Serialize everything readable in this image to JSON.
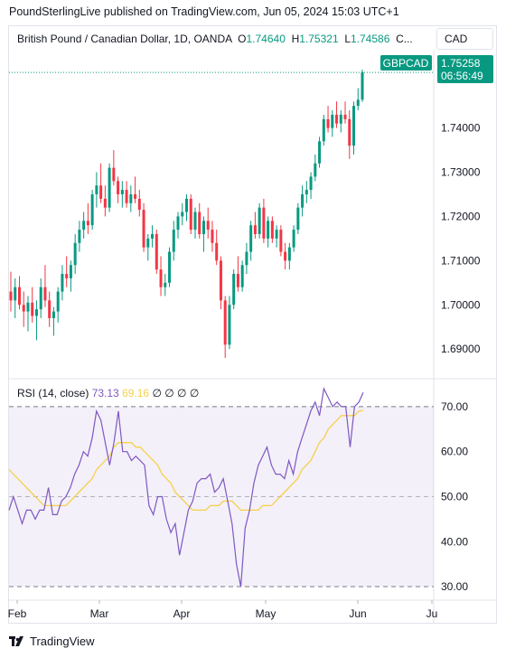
{
  "header": {
    "publisher": "PoundSterlingLive published on TradingView.com, Jun 05, 2024 15:03 UTC+1"
  },
  "legend": {
    "title": "British Pound / Canadian Dollar, 1D, OANDA",
    "open_label": "O",
    "open": "1.74640",
    "high_label": "H",
    "high": "1.75321",
    "low_label": "L",
    "low": "1.74586",
    "more": "C..."
  },
  "currency_button": "CAD",
  "price_tag": {
    "symbol": "GBPCAD",
    "price": "1.75258",
    "countdown": "06:56:49"
  },
  "rsi_legend": {
    "name": "RSI (14, close)",
    "rsi": "73.13",
    "ma": "69.16",
    "extras": "∅ ∅ ∅ ∅"
  },
  "brand": {
    "name": "TradingView",
    "icon": "tradingview-logo-icon"
  },
  "colors": {
    "up": "#089981",
    "down": "#f23645",
    "rsi": "#7e57c2",
    "rsi_ma": "#f7d04a",
    "band": "#7e57c2"
  },
  "chart_data": [
    {
      "type": "candlestick",
      "x_tick_labels": [
        "Feb",
        "Mar",
        "Apr",
        "May",
        "Jun",
        "Ju"
      ],
      "y_tick_labels": [
        "1.74000",
        "1.73000",
        "1.72000",
        "1.71000",
        "1.70000",
        "1.69000"
      ],
      "ylim": [
        1.6835,
        1.7575
      ],
      "grid": false,
      "candles": [
        [
          1.703,
          1.7075,
          1.6985,
          1.701
        ],
        [
          1.701,
          1.706,
          1.697,
          1.704
        ],
        [
          1.704,
          1.7065,
          1.699,
          1.7
        ],
        [
          1.7,
          1.703,
          1.695,
          1.6985
        ],
        [
          1.6985,
          1.702,
          1.694,
          1.7005
        ],
        [
          1.7005,
          1.704,
          1.696,
          1.6975
        ],
        [
          1.6975,
          1.701,
          1.692,
          1.699
        ],
        [
          1.699,
          1.706,
          1.697,
          1.704
        ],
        [
          1.704,
          1.709,
          1.6995,
          1.701
        ],
        [
          1.701,
          1.703,
          1.695,
          1.697
        ],
        [
          1.697,
          1.6995,
          1.693,
          1.6985
        ],
        [
          1.6985,
          1.704,
          1.696,
          1.703
        ],
        [
          1.703,
          1.709,
          1.701,
          1.707
        ],
        [
          1.707,
          1.711,
          1.704,
          1.706
        ],
        [
          1.706,
          1.71,
          1.703,
          1.709
        ],
        [
          1.709,
          1.716,
          1.707,
          1.714
        ],
        [
          1.714,
          1.719,
          1.712,
          1.717
        ],
        [
          1.717,
          1.721,
          1.715,
          1.719
        ],
        [
          1.719,
          1.723,
          1.716,
          1.718
        ],
        [
          1.718,
          1.726,
          1.717,
          1.725
        ],
        [
          1.725,
          1.73,
          1.722,
          1.727
        ],
        [
          1.727,
          1.732,
          1.723,
          1.724
        ],
        [
          1.724,
          1.727,
          1.72,
          1.722
        ],
        [
          1.722,
          1.732,
          1.721,
          1.731
        ],
        [
          1.731,
          1.735,
          1.727,
          1.728
        ],
        [
          1.728,
          1.729,
          1.723,
          1.725
        ],
        [
          1.725,
          1.728,
          1.722,
          1.726
        ],
        [
          1.726,
          1.728,
          1.722,
          1.723
        ],
        [
          1.723,
          1.727,
          1.721,
          1.725
        ],
        [
          1.725,
          1.729,
          1.723,
          1.724
        ],
        [
          1.724,
          1.726,
          1.72,
          1.7215
        ],
        [
          1.7215,
          1.723,
          1.712,
          1.713
        ],
        [
          1.713,
          1.716,
          1.71,
          1.715
        ],
        [
          1.715,
          1.718,
          1.713,
          1.716
        ],
        [
          1.716,
          1.717,
          1.707,
          1.708
        ],
        [
          1.708,
          1.711,
          1.702,
          1.704
        ],
        [
          1.704,
          1.707,
          1.702,
          1.705
        ],
        [
          1.705,
          1.713,
          1.704,
          1.712
        ],
        [
          1.712,
          1.719,
          1.71,
          1.717
        ],
        [
          1.717,
          1.721,
          1.715,
          1.72
        ],
        [
          1.72,
          1.723,
          1.718,
          1.721
        ],
        [
          1.721,
          1.725,
          1.719,
          1.724
        ],
        [
          1.724,
          1.725,
          1.716,
          1.717
        ],
        [
          1.717,
          1.722,
          1.715,
          1.721
        ],
        [
          1.721,
          1.723,
          1.715,
          1.716
        ],
        [
          1.716,
          1.72,
          1.712,
          1.719
        ],
        [
          1.719,
          1.722,
          1.715,
          1.717
        ],
        [
          1.717,
          1.719,
          1.712,
          1.714
        ],
        [
          1.714,
          1.717,
          1.709,
          1.71
        ],
        [
          1.71,
          1.711,
          1.699,
          1.701
        ],
        [
          1.701,
          1.702,
          1.688,
          1.691
        ],
        [
          1.691,
          1.702,
          1.69,
          1.7
        ],
        [
          1.7,
          1.708,
          1.699,
          1.707
        ],
        [
          1.707,
          1.711,
          1.703,
          1.704
        ],
        [
          1.704,
          1.71,
          1.703,
          1.709
        ],
        [
          1.709,
          1.714,
          1.707,
          1.712
        ],
        [
          1.712,
          1.719,
          1.71,
          1.718
        ],
        [
          1.718,
          1.721,
          1.715,
          1.716
        ],
        [
          1.716,
          1.723,
          1.715,
          1.722
        ],
        [
          1.722,
          1.724,
          1.714,
          1.715
        ],
        [
          1.715,
          1.72,
          1.713,
          1.719
        ],
        [
          1.719,
          1.72,
          1.714,
          1.715
        ],
        [
          1.715,
          1.718,
          1.713,
          1.717
        ],
        [
          1.717,
          1.718,
          1.711,
          1.712
        ],
        [
          1.712,
          1.714,
          1.708,
          1.71
        ],
        [
          1.71,
          1.714,
          1.708,
          1.713
        ],
        [
          1.713,
          1.718,
          1.712,
          1.717
        ],
        [
          1.717,
          1.723,
          1.716,
          1.722
        ],
        [
          1.722,
          1.727,
          1.72,
          1.725
        ],
        [
          1.725,
          1.728,
          1.723,
          1.726
        ],
        [
          1.726,
          1.73,
          1.724,
          1.729
        ],
        [
          1.729,
          1.734,
          1.728,
          1.732
        ],
        [
          1.732,
          1.738,
          1.731,
          1.737
        ],
        [
          1.737,
          1.743,
          1.736,
          1.742
        ],
        [
          1.742,
          1.745,
          1.739,
          1.74
        ],
        [
          1.74,
          1.744,
          1.738,
          1.743
        ],
        [
          1.743,
          1.746,
          1.74,
          1.741
        ],
        [
          1.741,
          1.744,
          1.739,
          1.743
        ],
        [
          1.743,
          1.746,
          1.741,
          1.742
        ],
        [
          1.742,
          1.744,
          1.733,
          1.736
        ],
        [
          1.736,
          1.746,
          1.734,
          1.745
        ],
        [
          1.745,
          1.749,
          1.744,
          1.7464
        ],
        [
          1.7464,
          1.7532,
          1.7459,
          1.7526
        ]
      ]
    },
    {
      "type": "line",
      "title": "RSI (14, close)",
      "y_tick_labels": [
        "70.00",
        "60.00",
        "50.00",
        "40.00",
        "30.00"
      ],
      "ylim": [
        27,
        76
      ],
      "bands": {
        "upper": 70,
        "middle": 50,
        "lower": 30
      },
      "series": [
        {
          "values": [
            47,
            50,
            47,
            44,
            47,
            47,
            45,
            47,
            47,
            52,
            46,
            46,
            49,
            50,
            52,
            55,
            57,
            60,
            59,
            63,
            69,
            67,
            62,
            57,
            62,
            69,
            60,
            60,
            58,
            59,
            58,
            57,
            48,
            46,
            50,
            50,
            45,
            42,
            44,
            37,
            42,
            47,
            49,
            53,
            54,
            54,
            55,
            51,
            52,
            54,
            49,
            44,
            35,
            30,
            43,
            47,
            53,
            57,
            59,
            61,
            57,
            55,
            55,
            54,
            58,
            55,
            60,
            63,
            66,
            69,
            71,
            68,
            74,
            72,
            70,
            71,
            70,
            70,
            61,
            70,
            71,
            73.13
          ]
        },
        {
          "values": [
            56,
            55,
            54,
            53,
            52,
            51,
            50,
            49,
            48,
            48,
            48,
            48,
            48,
            48,
            49,
            50,
            51,
            52,
            53,
            54,
            56,
            57,
            58,
            59,
            61,
            62,
            62,
            62,
            62,
            61,
            61,
            60,
            59,
            58,
            57,
            55,
            54,
            53,
            51,
            50,
            49,
            48,
            47,
            47,
            47,
            47,
            48,
            48,
            48,
            49,
            49,
            49,
            48,
            47,
            47,
            47,
            47,
            47,
            48,
            48,
            48,
            49,
            50,
            51,
            52,
            53,
            54,
            56,
            57,
            58,
            60,
            62,
            63,
            65,
            66,
            67,
            68,
            68,
            68,
            68,
            69,
            69.16
          ]
        }
      ]
    }
  ]
}
